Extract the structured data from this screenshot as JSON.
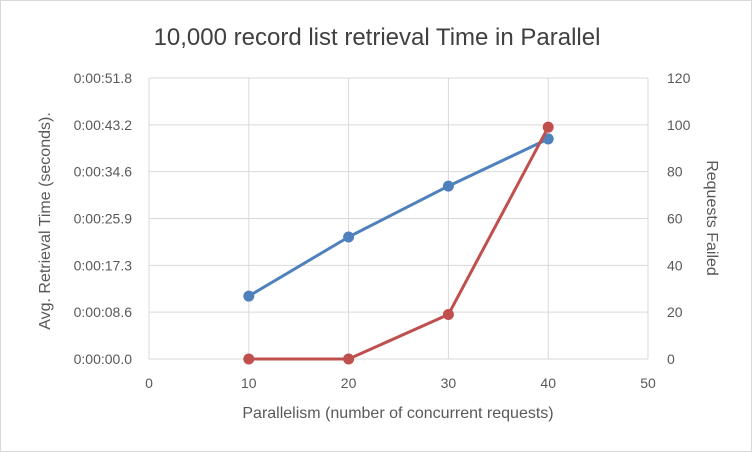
{
  "chart_data": {
    "type": "line",
    "title": "10,000 record list retrieval Time in Parallel",
    "xlabel": "Parallelism (number of concurrent requests)",
    "ylabel": "Avg. Retrieval Time (seconds).",
    "y2label": "Requests Failed",
    "xlim": [
      0,
      50
    ],
    "x_ticks": [
      "0",
      "10",
      "20",
      "30",
      "40",
      "50"
    ],
    "ylim_seconds": [
      0,
      51.84
    ],
    "y_ticks": [
      "0:00:00.0",
      "0:00:08.6",
      "0:00:17.3",
      "0:00:25.9",
      "0:00:34.6",
      "0:00:43.2",
      "0:00:51.8"
    ],
    "y2lim": [
      0,
      120
    ],
    "y2_ticks": [
      "0",
      "20",
      "40",
      "60",
      "80",
      "100",
      "120"
    ],
    "grid": true,
    "legend": "none",
    "series": [
      {
        "axis": "left",
        "color": "#4f81bd",
        "x": [
          10,
          20,
          30,
          40
        ],
        "y": [
          11.6,
          22.5,
          31.9,
          40.6
        ]
      },
      {
        "axis": "right",
        "color": "#c0504d",
        "x": [
          10,
          20,
          30,
          40
        ],
        "y": [
          0,
          0,
          19,
          99
        ]
      }
    ]
  }
}
